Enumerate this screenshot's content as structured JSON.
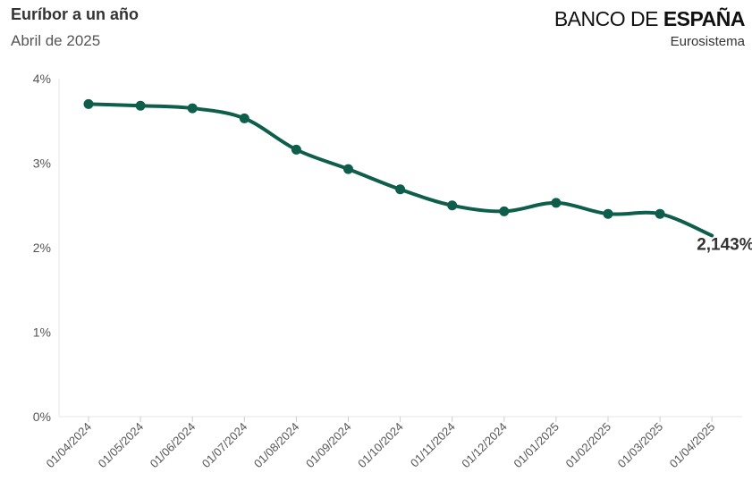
{
  "header": {
    "title": "Euríbor a un año",
    "subtitle": "Abril de 2025"
  },
  "logo": {
    "part1": "BANCO DE ",
    "part2": "ESPAÑA",
    "sub": "Eurosistema"
  },
  "colors": {
    "line": "#0e5e4b",
    "grid": "#e6e6e6",
    "axis_text": "#555555"
  },
  "chart_data": {
    "type": "line",
    "title": "Euríbor a un año",
    "subtitle": "Abril de 2025",
    "xlabel": "",
    "ylabel": "",
    "ylim": [
      0,
      4
    ],
    "yticks": [
      0,
      1,
      2,
      3,
      4
    ],
    "ytick_labels": [
      "0%",
      "1%",
      "2%",
      "3%",
      "4%"
    ],
    "categories": [
      "01/04/2024",
      "01/05/2024",
      "01/06/2024",
      "01/07/2024",
      "01/08/2024",
      "01/09/2024",
      "01/10/2024",
      "01/11/2024",
      "01/12/2024",
      "01/01/2025",
      "01/02/2025",
      "01/03/2025",
      "01/04/2025"
    ],
    "series": [
      {
        "values": [
          3.7,
          3.68,
          3.65,
          3.53,
          3.16,
          2.93,
          2.69,
          2.5,
          2.43,
          2.53,
          2.4,
          2.4,
          2.143
        ],
        "markers": [
          true,
          true,
          true,
          true,
          true,
          true,
          true,
          true,
          true,
          true,
          true,
          true,
          false
        ]
      }
    ],
    "last_value_label": "2,143%",
    "grid": false,
    "legend": "none"
  }
}
